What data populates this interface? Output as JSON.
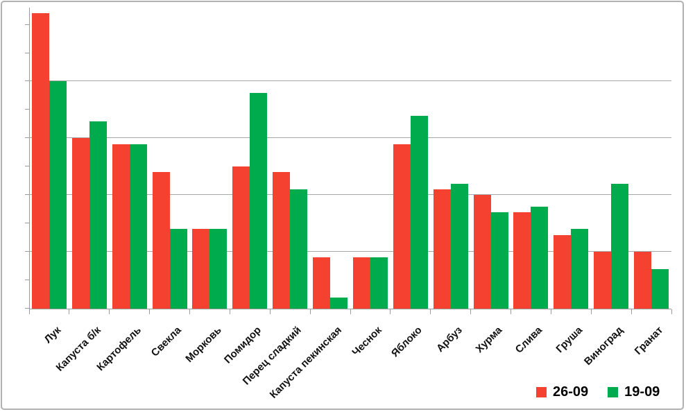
{
  "chart_data": {
    "type": "bar",
    "title": "",
    "xlabel": "",
    "ylabel": "",
    "categories": [
      "Лук",
      "Капуста б/к",
      "Картофель",
      "Свекла",
      "Морковь",
      "Помидор",
      "Перец сладкий",
      "Капуста пекинская",
      "Чеснок",
      "Яблоко",
      "Арбуз",
      "Хурма",
      "Слива",
      "Груша",
      "Виноград",
      "Гранат"
    ],
    "series": [
      {
        "name": "26-09",
        "color": "#f54130",
        "values": [
          52,
          30,
          29,
          24,
          14,
          25,
          24,
          9,
          9,
          29,
          21,
          20,
          17,
          13,
          10,
          10
        ]
      },
      {
        "name": "19-09",
        "color": "#00ab4e",
        "values": [
          40,
          33,
          29,
          14,
          14,
          38,
          21,
          2,
          9,
          34,
          22,
          17,
          18,
          14,
          22,
          7
        ]
      }
    ],
    "ylim": [
      0,
      53
    ],
    "gridline_step": 10,
    "minor_tick_step": 5,
    "grid": true,
    "y_tick_labels_visible": false,
    "x_label_rotation_deg": 45,
    "legend_position": "bottom-right"
  },
  "colors": {
    "series_red": "#f54130",
    "series_green": "#00ab4e",
    "gridline": "#a6a6a6",
    "axis": "#9b9b9b",
    "frame_border": "#b0b0b0",
    "label_text": "#111111",
    "background": "#ffffff"
  }
}
